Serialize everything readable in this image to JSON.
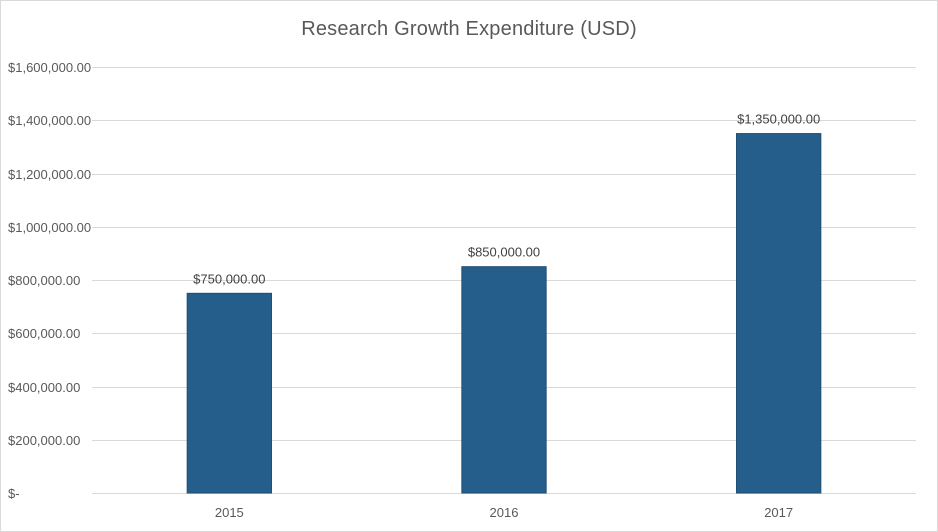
{
  "chart_data": {
    "type": "bar",
    "title": "Research Growth Expenditure (USD)",
    "xlabel": "",
    "ylabel": "",
    "categories": [
      "2015",
      "2016",
      "2017"
    ],
    "values": [
      750000,
      850000,
      1350000
    ],
    "data_labels": [
      "$750,000.00",
      "$850,000.00",
      "$1,350,000.00"
    ],
    "ylim": [
      0,
      1600000
    ],
    "y_ticks": [
      0,
      200000,
      400000,
      600000,
      800000,
      1000000,
      1200000,
      1400000,
      1600000
    ],
    "y_tick_labels": [
      "$-",
      "$200,000.00",
      "$400,000.00",
      "$600,000.00",
      "$800,000.00",
      "$1,000,000.00",
      "$1,200,000.00",
      "$1,400,000.00",
      "$1,600,000.00"
    ],
    "grid": true,
    "legend": "none",
    "colors": {
      "bar": "#255e8a",
      "bar_edge": "#1f4f74",
      "grid": "#d9d9d9",
      "text": "#595959"
    }
  }
}
